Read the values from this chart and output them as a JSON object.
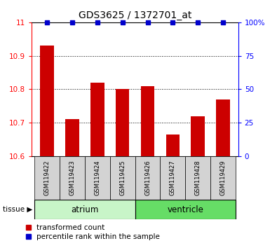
{
  "title": "GDS3625 / 1372701_at",
  "samples": [
    "GSM119422",
    "GSM119423",
    "GSM119424",
    "GSM119425",
    "GSM119426",
    "GSM119427",
    "GSM119428",
    "GSM119429"
  ],
  "red_values": [
    10.93,
    10.71,
    10.82,
    10.8,
    10.81,
    10.665,
    10.72,
    10.77
  ],
  "blue_values": [
    100,
    100,
    100,
    100,
    100,
    100,
    100,
    100
  ],
  "ylim_left": [
    10.6,
    11.0
  ],
  "ylim_right": [
    0,
    100
  ],
  "yticks_left": [
    10.6,
    10.7,
    10.8,
    10.9,
    11.0
  ],
  "ytick_labels_left": [
    "10.6",
    "10.7",
    "10.8",
    "10.9",
    "11"
  ],
  "yticks_right": [
    0,
    25,
    50,
    75,
    100
  ],
  "ytick_labels_right": [
    "0",
    "25",
    "50",
    "75",
    "100%"
  ],
  "groups": [
    {
      "label": "atrium",
      "samples": [
        0,
        1,
        2,
        3
      ],
      "color": "#c8f5c8"
    },
    {
      "label": "ventricle",
      "samples": [
        4,
        5,
        6,
        7
      ],
      "color": "#66dd66"
    }
  ],
  "bar_color_red": "#cc0000",
  "bar_color_blue": "#0000cc",
  "bar_width": 0.55,
  "tissue_label": "tissue",
  "legend_red": "transformed count",
  "legend_blue": "percentile rank within the sample",
  "background_color": "#ffffff",
  "sample_box_color": "#d3d3d3",
  "gridline_ticks": [
    10.7,
    10.8,
    10.9
  ]
}
